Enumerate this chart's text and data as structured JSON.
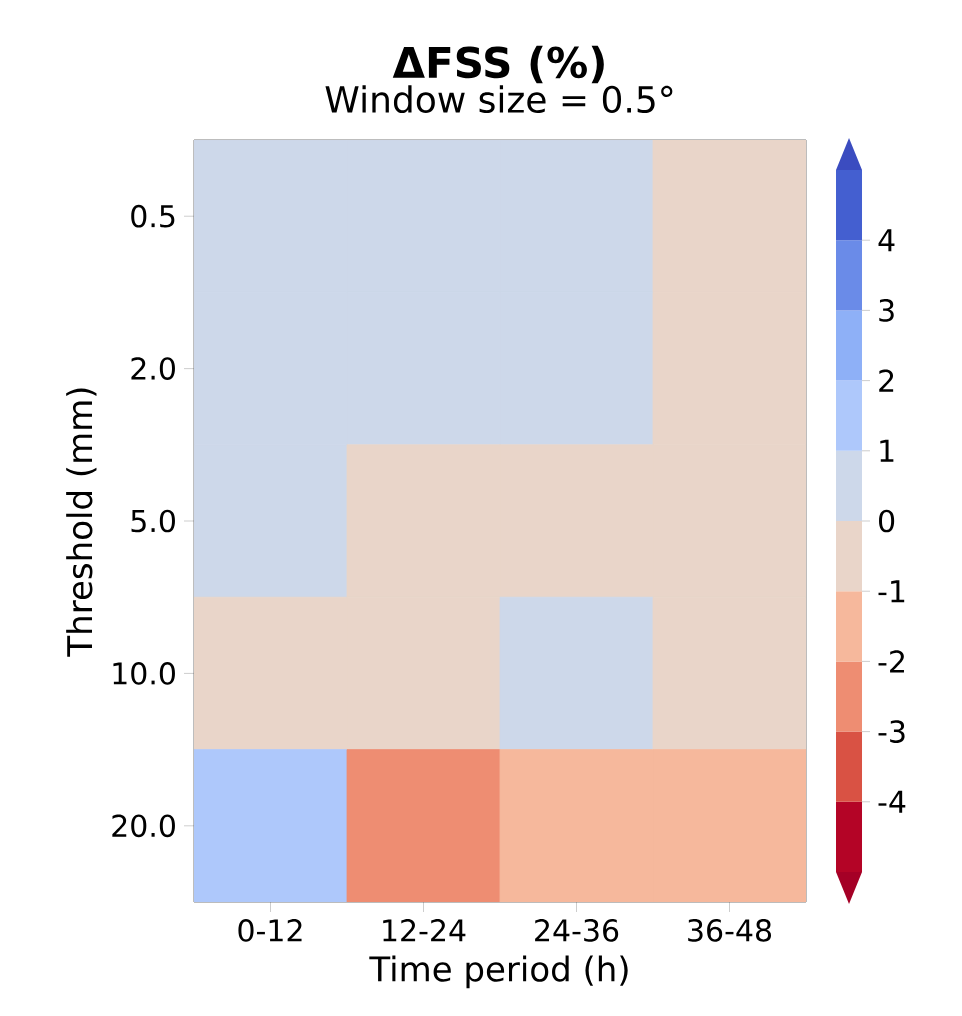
{
  "chart_data": {
    "type": "heatmap",
    "title": "ΔFSS (%)",
    "subtitle": "Window size = 0.5°",
    "xlabel": "Time period (h)",
    "ylabel": "Threshold (mm)",
    "categories": [
      "0-12",
      "12-24",
      "24-36",
      "36-48"
    ],
    "y_categories": [
      "0.5",
      "2.0",
      "5.0",
      "10.0",
      "20.0"
    ],
    "cells": [
      [
        0.5,
        0.5,
        0.5,
        -0.5
      ],
      [
        0.5,
        0.5,
        0.5,
        -0.5
      ],
      [
        0.5,
        -0.5,
        -0.5,
        -0.5
      ],
      [
        -0.5,
        -0.5,
        0.5,
        -0.5
      ],
      [
        1.5,
        -2.5,
        -1.5,
        -1.5
      ]
    ],
    "clim": [
      -5,
      5
    ],
    "cticks": [
      -4,
      -3,
      -2,
      -1,
      0,
      1,
      2,
      3,
      4
    ]
  }
}
